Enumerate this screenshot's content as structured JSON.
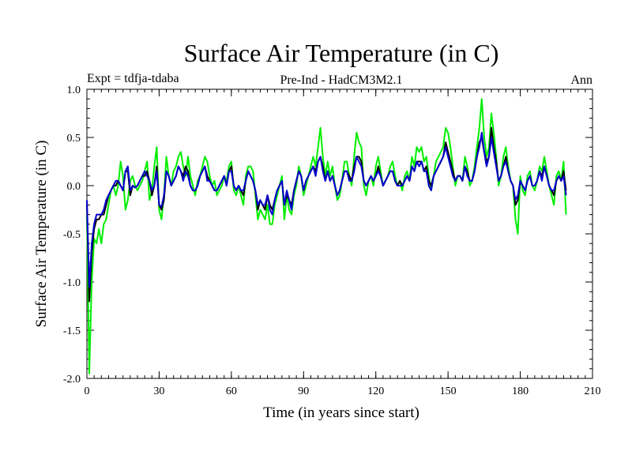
{
  "chart_data": {
    "type": "line",
    "title": "Surface Air Temperature (in C)",
    "subtitle_left": "Expt = tdfja-tdaba",
    "subtitle_center": "Pre-Ind - HadCM3M2.1",
    "subtitle_right": "Ann",
    "xlabel": "Time (in years since start)",
    "ylabel": "Surface Air Temperature (in C)",
    "xlim": [
      0,
      210
    ],
    "ylim": [
      -2.0,
      1.0
    ],
    "xticks": [
      0,
      30,
      60,
      90,
      120,
      150,
      180,
      210
    ],
    "xtick_labels": [
      "0",
      "30",
      "60",
      "90",
      "120",
      "150",
      "180",
      "210"
    ],
    "yticks": [
      1.0,
      0.5,
      0.0,
      -0.5,
      -1.0,
      -1.5,
      -2.0
    ],
    "ytick_labels": [
      "1.0",
      "0.5",
      "0.0",
      "-0.5",
      "-1.0",
      "-1.5",
      "-2.0"
    ],
    "grid": false,
    "series": [
      {
        "name": "green",
        "color": "#00ee00",
        "x": [
          0,
          1,
          2,
          3,
          4,
          5,
          6,
          7,
          8,
          9,
          10,
          11,
          12,
          13,
          14,
          15,
          16,
          17,
          18,
          19,
          20,
          21,
          22,
          23,
          24,
          25,
          26,
          27,
          28,
          29,
          30,
          31,
          32,
          33,
          34,
          35,
          36,
          37,
          38,
          39,
          40,
          41,
          42,
          43,
          44,
          45,
          46,
          47,
          48,
          49,
          50,
          51,
          52,
          53,
          54,
          55,
          56,
          57,
          58,
          59,
          60,
          61,
          62,
          63,
          64,
          65,
          66,
          67,
          68,
          69,
          70,
          71,
          72,
          73,
          74,
          75,
          76,
          77,
          78,
          79,
          80,
          81,
          82,
          83,
          84,
          85,
          86,
          87,
          88,
          89,
          90,
          91,
          92,
          93,
          94,
          95,
          96,
          97,
          98,
          99,
          100,
          101,
          102,
          103,
          104,
          105,
          106,
          107,
          108,
          109,
          110,
          111,
          112,
          113,
          114,
          115,
          116,
          117,
          118,
          119,
          120,
          121,
          122,
          123,
          124,
          125,
          126,
          127,
          128,
          129,
          130,
          131,
          132,
          133,
          134,
          135,
          136,
          137,
          138,
          139,
          140,
          141,
          142,
          143,
          144,
          145,
          146,
          147,
          148,
          149,
          150,
          151,
          152,
          153,
          154,
          155,
          156,
          157,
          158,
          159,
          160,
          161,
          162,
          163,
          164,
          165,
          166,
          167,
          168,
          169,
          170,
          171,
          172,
          173,
          174,
          175,
          176,
          177,
          178,
          179,
          180,
          181,
          182,
          183,
          184,
          185,
          186,
          187,
          188,
          189,
          190,
          191,
          192,
          193,
          194,
          195,
          196,
          197,
          198,
          199
        ],
        "values": [
          -0.3,
          -1.95,
          -1.0,
          -0.55,
          -0.6,
          -0.45,
          -0.6,
          -0.4,
          -0.35,
          -0.2,
          -0.05,
          0.0,
          -0.1,
          0.0,
          0.25,
          0.1,
          -0.25,
          -0.15,
          0.05,
          0.1,
          0.0,
          -0.05,
          0.0,
          0.05,
          0.15,
          0.25,
          -0.15,
          -0.05,
          0.2,
          0.4,
          -0.25,
          -0.35,
          -0.1,
          0.3,
          0.1,
          0.0,
          0.15,
          0.2,
          0.3,
          0.35,
          0.2,
          0.1,
          0.3,
          0.1,
          0.0,
          -0.1,
          0.05,
          0.1,
          0.2,
          0.3,
          0.25,
          0.1,
          0.0,
          0.05,
          -0.1,
          -0.05,
          0.0,
          0.1,
          0.05,
          0.2,
          0.25,
          -0.05,
          -0.1,
          0.0,
          -0.1,
          -0.2,
          0.1,
          0.2,
          0.2,
          0.15,
          -0.1,
          -0.35,
          -0.25,
          -0.3,
          -0.35,
          -0.2,
          -0.4,
          -0.4,
          -0.2,
          -0.1,
          0.0,
          0.1,
          -0.35,
          -0.1,
          -0.25,
          -0.3,
          -0.1,
          0.0,
          0.2,
          0.1,
          -0.1,
          0.0,
          0.1,
          0.2,
          0.3,
          0.2,
          0.4,
          0.6,
          0.3,
          0.1,
          0.25,
          0.1,
          0.2,
          0.0,
          -0.15,
          -0.1,
          0.05,
          0.25,
          0.25,
          0.1,
          0.0,
          0.3,
          0.55,
          0.45,
          0.4,
          0.0,
          -0.1,
          0.05,
          0.1,
          0.0,
          0.2,
          0.3,
          0.15,
          0.0,
          0.05,
          0.1,
          0.2,
          0.25,
          0.1,
          0.0,
          0.05,
          -0.05,
          0.1,
          0.15,
          0.05,
          0.3,
          0.2,
          0.4,
          0.35,
          0.4,
          0.25,
          0.3,
          0.1,
          -0.05,
          0.1,
          0.25,
          0.3,
          0.35,
          0.4,
          0.6,
          0.55,
          0.4,
          0.2,
          0.0,
          0.1,
          0.1,
          0.05,
          0.3,
          0.2,
          0.0,
          0.05,
          0.2,
          0.4,
          0.6,
          0.9,
          0.5,
          0.3,
          0.4,
          0.75,
          0.55,
          0.3,
          0.0,
          0.1,
          0.3,
          0.4,
          0.2,
          0.05,
          0.0,
          -0.35,
          -0.5,
          0.1,
          -0.05,
          -0.1,
          0.1,
          0.15,
          0.0,
          -0.05,
          0.05,
          0.2,
          0.15,
          0.3,
          0.15,
          0.0,
          -0.1,
          -0.2,
          0.1,
          0.15,
          0.05,
          0.25,
          -0.3
        ]
      },
      {
        "name": "black",
        "color": "#000000",
        "x": [
          0,
          1,
          2,
          3,
          4,
          5,
          6,
          7,
          8,
          9,
          10,
          11,
          12,
          13,
          14,
          15,
          16,
          17,
          18,
          19,
          20,
          21,
          22,
          23,
          24,
          25,
          26,
          27,
          28,
          29,
          30,
          31,
          32,
          33,
          34,
          35,
          36,
          37,
          38,
          39,
          40,
          41,
          42,
          43,
          44,
          45,
          46,
          47,
          48,
          49,
          50,
          51,
          52,
          53,
          54,
          55,
          56,
          57,
          58,
          59,
          60,
          61,
          62,
          63,
          64,
          65,
          66,
          67,
          68,
          69,
          70,
          71,
          72,
          73,
          74,
          75,
          76,
          77,
          78,
          79,
          80,
          81,
          82,
          83,
          84,
          85,
          86,
          87,
          88,
          89,
          90,
          91,
          92,
          93,
          94,
          95,
          96,
          97,
          98,
          99,
          100,
          101,
          102,
          103,
          104,
          105,
          106,
          107,
          108,
          109,
          110,
          111,
          112,
          113,
          114,
          115,
          116,
          117,
          118,
          119,
          120,
          121,
          122,
          123,
          124,
          125,
          126,
          127,
          128,
          129,
          130,
          131,
          132,
          133,
          134,
          135,
          136,
          137,
          138,
          139,
          140,
          141,
          142,
          143,
          144,
          145,
          146,
          147,
          148,
          149,
          150,
          151,
          152,
          153,
          154,
          155,
          156,
          157,
          158,
          159,
          160,
          161,
          162,
          163,
          164,
          165,
          166,
          167,
          168,
          169,
          170,
          171,
          172,
          173,
          174,
          175,
          176,
          177,
          178,
          179,
          180,
          181,
          182,
          183,
          184,
          185,
          186,
          187,
          188,
          189,
          190,
          191,
          192,
          193,
          194,
          195,
          196,
          197,
          198,
          199
        ],
        "values": [
          -0.2,
          -1.2,
          -0.7,
          -0.45,
          -0.35,
          -0.35,
          -0.3,
          -0.3,
          -0.2,
          -0.1,
          -0.05,
          0.0,
          0.0,
          0.05,
          0.0,
          -0.05,
          0.15,
          0.15,
          -0.1,
          0.0,
          -0.02,
          0.0,
          0.05,
          0.1,
          0.1,
          0.15,
          0.05,
          -0.1,
          0.0,
          0.2,
          -0.2,
          -0.25,
          -0.15,
          0.15,
          0.1,
          0.0,
          0.05,
          0.1,
          0.2,
          0.15,
          0.1,
          0.2,
          0.15,
          0.0,
          -0.05,
          -0.05,
          0.0,
          0.1,
          0.15,
          0.2,
          0.1,
          0.05,
          0.0,
          -0.05,
          -0.05,
          0.0,
          0.05,
          0.1,
          0.0,
          0.15,
          0.2,
          0.0,
          -0.05,
          0.0,
          -0.05,
          -0.1,
          0.05,
          0.15,
          0.1,
          0.05,
          -0.05,
          -0.25,
          -0.15,
          -0.2,
          -0.25,
          -0.1,
          -0.2,
          -0.25,
          -0.15,
          -0.05,
          0.0,
          0.05,
          -0.2,
          -0.1,
          -0.15,
          -0.2,
          -0.05,
          0.05,
          0.15,
          0.1,
          -0.05,
          0.05,
          0.1,
          0.15,
          0.2,
          0.15,
          0.25,
          0.3,
          0.2,
          0.05,
          0.15,
          0.05,
          0.1,
          0.0,
          -0.1,
          -0.05,
          0.05,
          0.15,
          0.15,
          0.1,
          0.05,
          0.2,
          0.3,
          0.3,
          0.25,
          0.05,
          0.0,
          0.05,
          0.1,
          0.05,
          0.1,
          0.2,
          0.1,
          0.0,
          0.05,
          0.1,
          0.15,
          0.15,
          0.05,
          0.0,
          0.05,
          0.0,
          0.05,
          0.1,
          0.05,
          0.2,
          0.15,
          0.25,
          0.25,
          0.25,
          0.15,
          0.2,
          0.05,
          0.0,
          0.1,
          0.15,
          0.2,
          0.25,
          0.3,
          0.45,
          0.35,
          0.25,
          0.15,
          0.05,
          0.1,
          0.1,
          0.05,
          0.2,
          0.15,
          0.05,
          0.05,
          0.15,
          0.3,
          0.45,
          0.5,
          0.35,
          0.25,
          0.3,
          0.6,
          0.4,
          0.25,
          0.05,
          0.1,
          0.2,
          0.3,
          0.15,
          0.05,
          0.0,
          -0.2,
          -0.15,
          0.05,
          0.0,
          -0.05,
          0.05,
          0.1,
          0.0,
          0.0,
          0.05,
          0.15,
          0.1,
          0.2,
          0.1,
          0.0,
          -0.05,
          -0.1,
          0.05,
          0.1,
          0.05,
          0.15,
          -0.05
        ]
      },
      {
        "name": "blue",
        "color": "#0000cc",
        "x": [
          0,
          1,
          2,
          3,
          4,
          5,
          6,
          7,
          8,
          9,
          10,
          11,
          12,
          13,
          14,
          15,
          16,
          17,
          18,
          19,
          20,
          21,
          22,
          23,
          24,
          25,
          26,
          27,
          28,
          29,
          30,
          31,
          32,
          33,
          34,
          35,
          36,
          37,
          38,
          39,
          40,
          41,
          42,
          43,
          44,
          45,
          46,
          47,
          48,
          49,
          50,
          51,
          52,
          53,
          54,
          55,
          56,
          57,
          58,
          59,
          60,
          61,
          62,
          63,
          64,
          65,
          66,
          67,
          68,
          69,
          70,
          71,
          72,
          73,
          74,
          75,
          76,
          77,
          78,
          79,
          80,
          81,
          82,
          83,
          84,
          85,
          86,
          87,
          88,
          89,
          90,
          91,
          92,
          93,
          94,
          95,
          96,
          97,
          98,
          99,
          100,
          101,
          102,
          103,
          104,
          105,
          106,
          107,
          108,
          109,
          110,
          111,
          112,
          113,
          114,
          115,
          116,
          117,
          118,
          119,
          120,
          121,
          122,
          123,
          124,
          125,
          126,
          127,
          128,
          129,
          130,
          131,
          132,
          133,
          134,
          135,
          136,
          137,
          138,
          139,
          140,
          141,
          142,
          143,
          144,
          145,
          146,
          147,
          148,
          149,
          150,
          151,
          152,
          153,
          154,
          155,
          156,
          157,
          158,
          159,
          160,
          161,
          162,
          163,
          164,
          165,
          166,
          167,
          168,
          169,
          170,
          171,
          172,
          173,
          174,
          175,
          176,
          177,
          178,
          179,
          180,
          181,
          182,
          183,
          184,
          185,
          186,
          187,
          188,
          189,
          190,
          191,
          192,
          193,
          194,
          195,
          196,
          197,
          198,
          199
        ],
        "values": [
          -0.15,
          -1.05,
          -0.6,
          -0.4,
          -0.3,
          -0.3,
          -0.3,
          -0.25,
          -0.15,
          -0.1,
          -0.05,
          0.0,
          0.05,
          0.05,
          0.0,
          -0.05,
          0.15,
          0.2,
          -0.05,
          0.0,
          -0.02,
          0.0,
          0.05,
          0.1,
          0.15,
          0.1,
          0.05,
          -0.05,
          0.0,
          0.15,
          -0.2,
          -0.22,
          -0.1,
          0.15,
          0.1,
          0.0,
          0.05,
          0.1,
          0.2,
          0.15,
          0.05,
          0.15,
          0.1,
          0.0,
          -0.05,
          -0.05,
          0.0,
          0.1,
          0.15,
          0.2,
          0.05,
          0.05,
          0.0,
          -0.05,
          -0.05,
          0.0,
          0.05,
          0.1,
          0.0,
          0.15,
          0.15,
          0.0,
          -0.05,
          0.0,
          -0.05,
          -0.05,
          0.05,
          0.15,
          0.1,
          0.05,
          -0.05,
          -0.2,
          -0.15,
          -0.2,
          -0.2,
          -0.1,
          -0.25,
          -0.3,
          -0.15,
          -0.05,
          0.0,
          0.05,
          -0.2,
          -0.05,
          -0.15,
          -0.25,
          -0.05,
          0.05,
          0.15,
          0.1,
          -0.05,
          0.05,
          0.1,
          0.15,
          0.2,
          0.1,
          0.25,
          0.3,
          0.15,
          0.05,
          0.15,
          0.05,
          0.1,
          0.0,
          -0.1,
          -0.05,
          0.05,
          0.15,
          0.15,
          0.05,
          0.05,
          0.15,
          0.3,
          0.25,
          0.2,
          0.05,
          0.0,
          0.05,
          0.1,
          0.05,
          0.1,
          0.15,
          0.1,
          0.0,
          0.05,
          0.1,
          0.15,
          0.15,
          0.05,
          0.0,
          0.0,
          0.0,
          0.05,
          0.1,
          0.05,
          0.2,
          0.15,
          0.25,
          0.2,
          0.25,
          0.15,
          0.15,
          0.0,
          -0.05,
          0.1,
          0.15,
          0.2,
          0.25,
          0.3,
          0.4,
          0.3,
          0.2,
          0.1,
          0.05,
          0.1,
          0.1,
          0.05,
          0.2,
          0.1,
          0.05,
          0.05,
          0.15,
          0.3,
          0.4,
          0.55,
          0.35,
          0.2,
          0.3,
          0.5,
          0.35,
          0.2,
          0.05,
          0.1,
          0.2,
          0.25,
          0.15,
          0.05,
          0.0,
          -0.15,
          -0.1,
          0.05,
          0.0,
          -0.05,
          0.05,
          0.1,
          0.0,
          0.0,
          0.05,
          0.15,
          0.05,
          0.2,
          0.1,
          0.0,
          -0.05,
          -0.05,
          0.05,
          0.1,
          0.05,
          0.1,
          -0.1
        ]
      }
    ]
  }
}
